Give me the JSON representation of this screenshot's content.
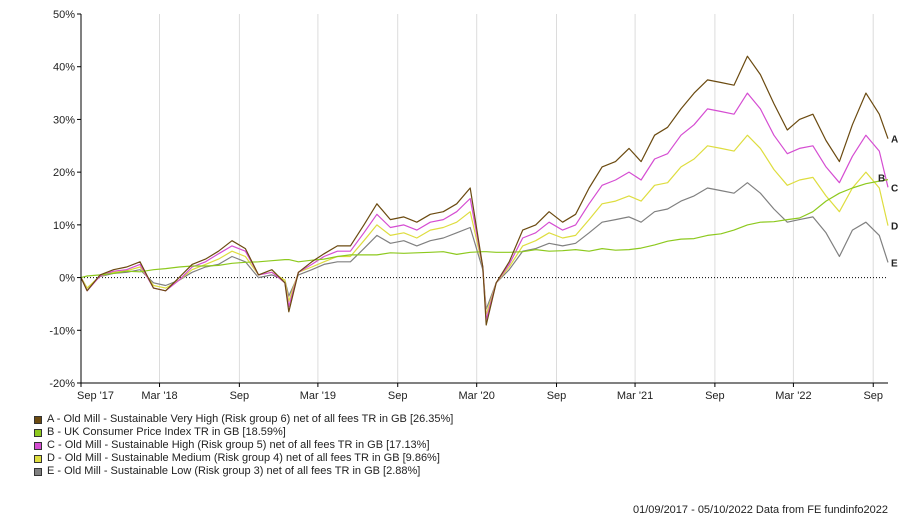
{
  "chart_data": {
    "type": "line",
    "xlim": [
      "2017-09-01",
      "2022-10-05"
    ],
    "ylim": [
      -20,
      50
    ],
    "grid": {
      "vertical": true,
      "horizontal": false
    },
    "zero_line": true,
    "legend_position": "bottom-left",
    "yticks": [
      {
        "value": 50,
        "label": "50%"
      },
      {
        "value": 40,
        "label": "40%"
      },
      {
        "value": 30,
        "label": "30%"
      },
      {
        "value": 20,
        "label": "20%"
      },
      {
        "value": 10,
        "label": "10%"
      },
      {
        "value": 0,
        "label": "0%"
      },
      {
        "value": -10,
        "label": "-10%"
      },
      {
        "value": -20,
        "label": "-20%"
      }
    ],
    "xticks": [
      {
        "date": "2017-09-01",
        "label": "Sep '17"
      },
      {
        "date": "2018-03-01",
        "label": "Mar '18"
      },
      {
        "date": "2018-09-01",
        "label": "Sep"
      },
      {
        "date": "2019-03-01",
        "label": "Mar '19"
      },
      {
        "date": "2019-09-01",
        "label": "Sep"
      },
      {
        "date": "2020-03-01",
        "label": "Mar '20"
      },
      {
        "date": "2020-09-01",
        "label": "Sep"
      },
      {
        "date": "2021-03-01",
        "label": "Mar '21"
      },
      {
        "date": "2021-09-01",
        "label": "Sep"
      },
      {
        "date": "2022-03-01",
        "label": "Mar '22"
      },
      {
        "date": "2022-09-01",
        "label": "Sep"
      }
    ],
    "x": [
      "2017-09-01",
      "2017-09-15",
      "2017-10-15",
      "2017-11-15",
      "2017-12-15",
      "2018-01-15",
      "2018-02-15",
      "2018-03-15",
      "2018-04-15",
      "2018-05-15",
      "2018-06-15",
      "2018-07-15",
      "2018-08-15",
      "2018-09-15",
      "2018-10-15",
      "2018-11-15",
      "2018-12-15",
      "2018-12-24",
      "2019-01-15",
      "2019-02-15",
      "2019-03-15",
      "2019-04-15",
      "2019-05-15",
      "2019-06-15",
      "2019-07-15",
      "2019-08-15",
      "2019-09-15",
      "2019-10-15",
      "2019-11-15",
      "2019-12-15",
      "2020-01-15",
      "2020-02-15",
      "2020-03-15",
      "2020-03-23",
      "2020-04-15",
      "2020-05-15",
      "2020-06-15",
      "2020-07-15",
      "2020-08-15",
      "2020-09-15",
      "2020-10-15",
      "2020-11-15",
      "2020-12-15",
      "2021-01-15",
      "2021-02-15",
      "2021-03-15",
      "2021-04-15",
      "2021-05-15",
      "2021-06-15",
      "2021-07-15",
      "2021-08-15",
      "2021-09-15",
      "2021-10-15",
      "2021-11-15",
      "2021-12-15",
      "2022-01-15",
      "2022-02-15",
      "2022-03-15",
      "2022-04-15",
      "2022-05-15",
      "2022-06-15",
      "2022-07-15",
      "2022-08-15",
      "2022-09-15",
      "2022-10-05"
    ],
    "series": [
      {
        "label": "A",
        "name": "A - Old Mill - Sustainable Very High (Risk group 6) net of all fees TR in GB [26.35%]",
        "color": "#6b4a10",
        "values": [
          0,
          -2.5,
          0.5,
          1.5,
          2,
          3,
          -2,
          -2.5,
          0,
          2.5,
          3.5,
          5,
          7,
          5.5,
          0.5,
          1.5,
          -1,
          -6.5,
          1,
          3,
          4.5,
          6,
          6,
          10,
          14,
          11,
          11.5,
          10.5,
          12,
          12.5,
          14,
          17,
          2,
          -9,
          -1,
          3,
          9,
          10,
          12.5,
          10.5,
          12,
          17,
          21,
          22,
          24.5,
          22,
          27,
          28.5,
          32,
          35,
          37.5,
          37,
          36.5,
          42,
          38.5,
          33,
          28,
          30,
          31,
          26,
          22,
          29,
          35,
          31,
          26.35
        ]
      },
      {
        "label": "B",
        "name": "B - UK Consumer Price Index TR in GB [18.59%]",
        "color": "#8dc91e",
        "values": [
          0,
          0.3,
          0.5,
          0.8,
          1.2,
          1.1,
          1.5,
          1.7,
          2,
          2.2,
          2.2,
          2.3,
          2.7,
          2.9,
          3,
          3.2,
          3.4,
          3.4,
          3,
          3.3,
          3.5,
          4,
          4.3,
          4.3,
          4.3,
          4.7,
          4.6,
          4.7,
          4.8,
          4.9,
          4.4,
          4.8,
          4.9,
          4.9,
          4.8,
          4.8,
          4.9,
          5.3,
          5,
          5.1,
          5.3,
          5,
          5.5,
          5.2,
          5.3,
          5.6,
          6.2,
          6.9,
          7.3,
          7.4,
          8,
          8.3,
          9,
          10,
          10.5,
          10.6,
          11,
          11.3,
          12.5,
          14.5,
          16,
          17,
          17.8,
          18.3,
          18.59
        ]
      },
      {
        "label": "C",
        "name": "C - Old Mill - Sustainable High (Risk group 5) net of all fees TR in GB [17.13%]",
        "color": "#d54dd2",
        "values": [
          0,
          -2.5,
          0.3,
          1.2,
          1.5,
          2.5,
          -2,
          -2.5,
          -0.5,
          2,
          3,
          4.5,
          6,
          5,
          0.5,
          1,
          -1,
          -5.5,
          1,
          2.5,
          4,
          5,
          5,
          8.5,
          12,
          9.5,
          10,
          9,
          10.5,
          11,
          12.5,
          15,
          2,
          -8,
          -1,
          2.5,
          7.5,
          8.5,
          10.5,
          9,
          10,
          14,
          17.5,
          18.5,
          20,
          18.5,
          22.5,
          23.5,
          27,
          29,
          32,
          31.5,
          31,
          35,
          32,
          27,
          23.5,
          24.5,
          25,
          21,
          18,
          23,
          27,
          24,
          17.13
        ]
      },
      {
        "label": "D",
        "name": "D - Old Mill - Sustainable Medium (Risk group 4) net of all fees TR in GB [9.86%]",
        "color": "#dedd3f",
        "values": [
          0,
          -2,
          0.3,
          1,
          1.3,
          2,
          -1.5,
          -2,
          -0.5,
          1.5,
          2.5,
          3.5,
          5,
          4,
          0.5,
          1,
          -0.5,
          -4.5,
          1,
          2,
          3,
          4,
          4,
          7,
          10,
          8,
          8.5,
          7.5,
          9,
          9.5,
          10.5,
          12.5,
          2,
          -7,
          -1,
          2,
          6,
          7,
          8.5,
          7.5,
          8,
          11,
          14,
          14.5,
          15.5,
          14.5,
          17.5,
          18,
          21,
          22.5,
          25,
          24.5,
          24,
          27,
          24.5,
          20.5,
          17.5,
          18.5,
          19,
          15.5,
          12.5,
          17,
          20,
          17,
          9.86
        ]
      },
      {
        "label": "E",
        "name": "E - Old Mill - Sustainable Low (Risk group 3) net of all fees TR in GB [2.88%]",
        "color": "#808080",
        "values": [
          0,
          -2,
          0.2,
          0.8,
          1,
          1.5,
          -1,
          -1.5,
          -0.5,
          1,
          2,
          2.5,
          4,
          3,
          0,
          0.5,
          -0.5,
          -3.5,
          0.5,
          1.5,
          2.5,
          3,
          3,
          5.5,
          8,
          6.5,
          7,
          6,
          7,
          7.5,
          8.5,
          9.5,
          1.5,
          -6,
          -1,
          1.5,
          5,
          5.5,
          6.5,
          6,
          6.5,
          8.5,
          10.5,
          11,
          11.5,
          10.5,
          12.5,
          13,
          14.5,
          15.5,
          17,
          16.5,
          16,
          18,
          16,
          13,
          10.5,
          11,
          11.5,
          8.5,
          4,
          9,
          10.5,
          8,
          2.88
        ]
      }
    ]
  },
  "footer": "01/09/2017 - 05/10/2022 Data from FE fundinfo2022"
}
